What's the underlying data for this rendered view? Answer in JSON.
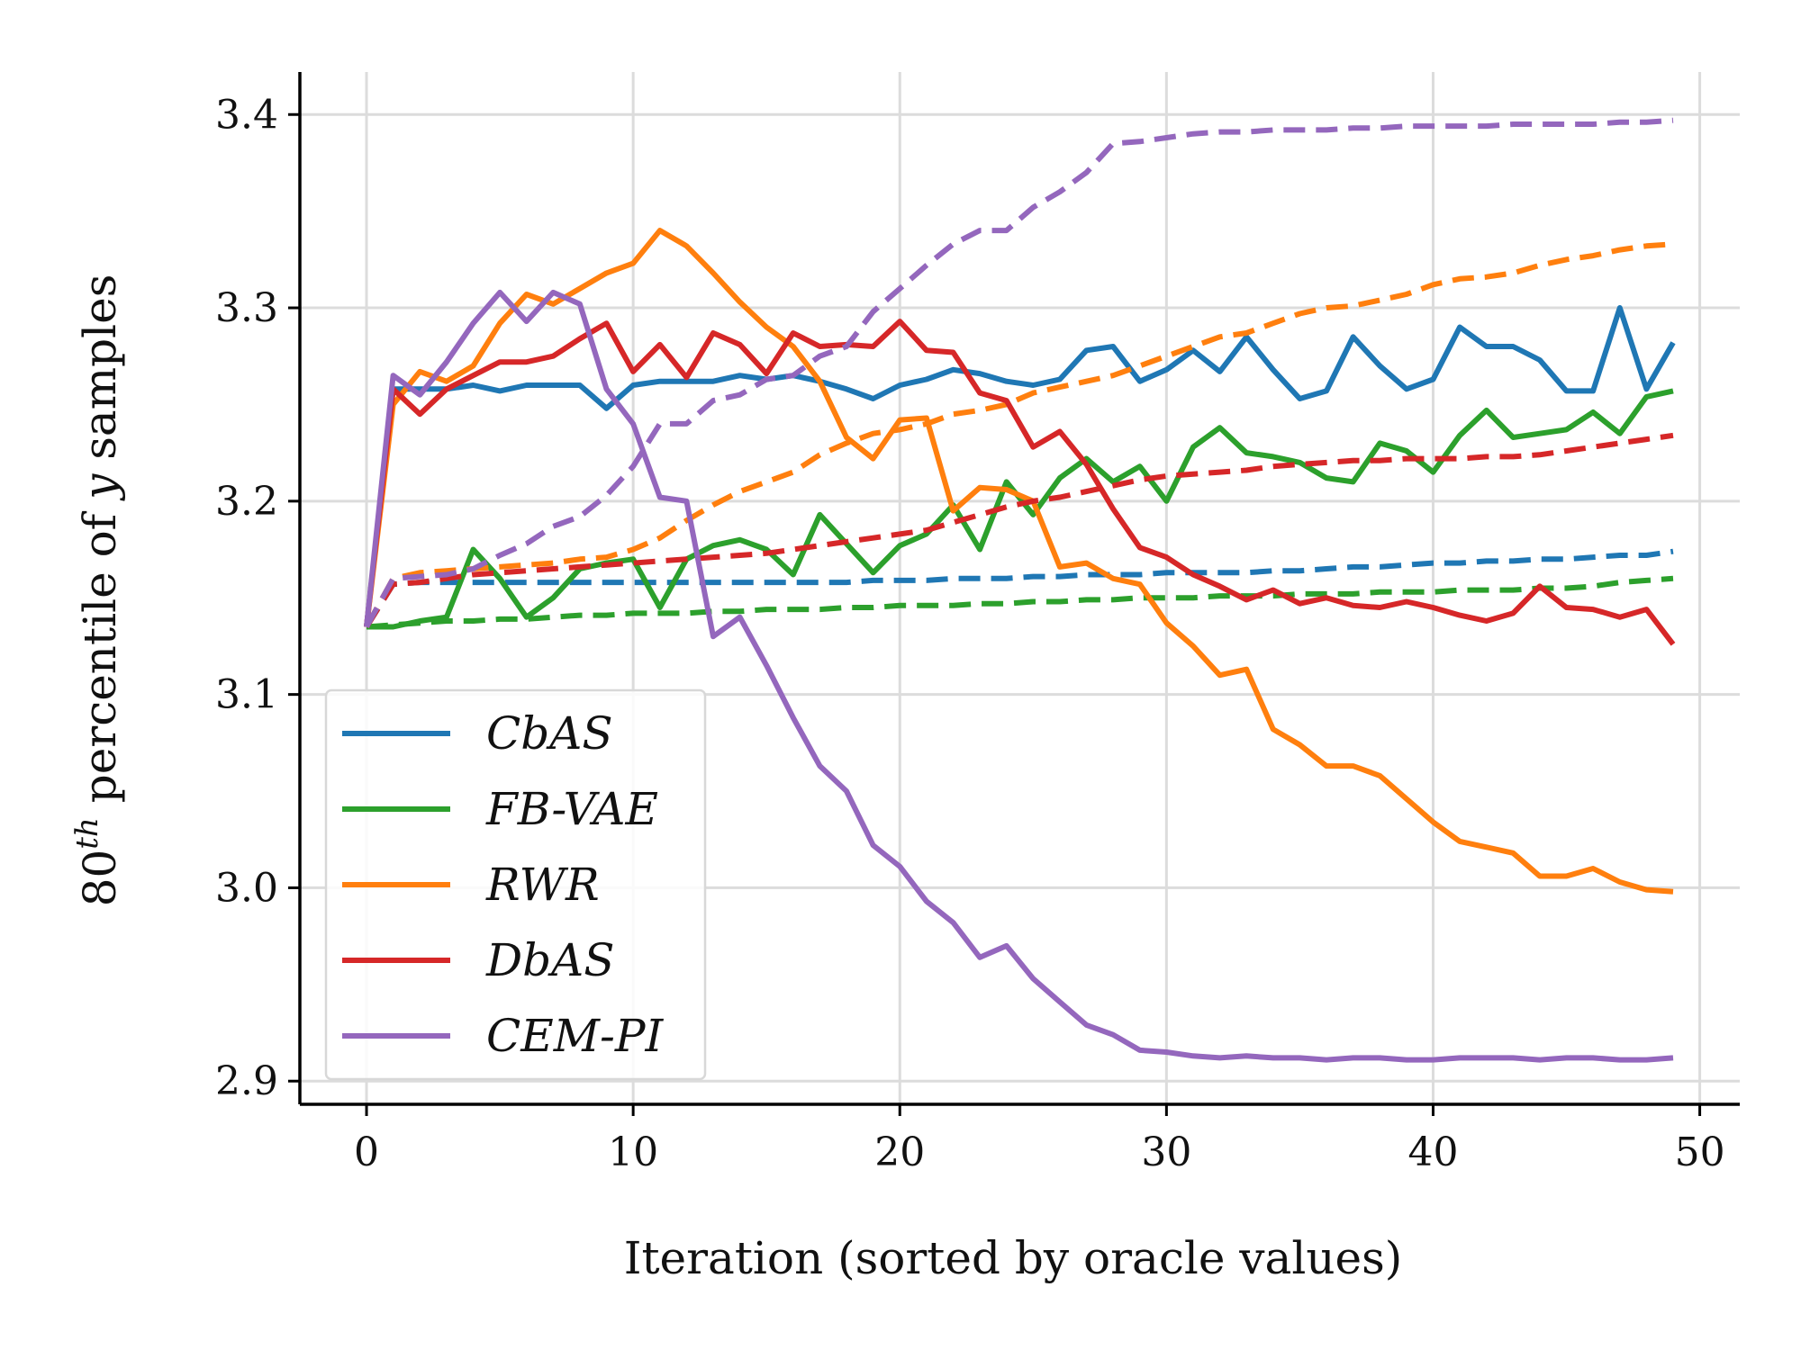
{
  "chart_data": {
    "type": "line",
    "title": "",
    "xlabel": "Iteration (sorted by oracle values)",
    "ylabel_base": "80",
    "ylabel_sup": "th",
    "ylabel_rest": " percentile of ",
    "ylabel_var": "y",
    "ylabel_end": " samples",
    "xlim": [
      -2.5,
      51.5
    ],
    "ylim": [
      2.888,
      3.422
    ],
    "xticks": [
      0,
      10,
      20,
      30,
      40,
      50
    ],
    "yticks": [
      2.9,
      3.0,
      3.1,
      3.2,
      3.3,
      3.4
    ],
    "xtick_labels": [
      "0",
      "10",
      "20",
      "30",
      "40",
      "50"
    ],
    "ytick_labels": [
      "2.9",
      "3.0",
      "3.1",
      "3.2",
      "3.3",
      "3.4"
    ],
    "grid": true,
    "legend_position": "lower-left",
    "line_styles": {
      "solid": "per-iteration 80th percentile",
      "dashed": "running best"
    },
    "series": [
      {
        "name": "CbAS",
        "color": "#1f77b4",
        "solid": [
          3.135,
          3.258,
          3.258,
          3.258,
          3.26,
          3.257,
          3.26,
          3.26,
          3.26,
          3.248,
          3.26,
          3.262,
          3.262,
          3.262,
          3.265,
          3.263,
          3.265,
          3.262,
          3.258,
          3.253,
          3.26,
          3.263,
          3.268,
          3.266,
          3.262,
          3.26,
          3.263,
          3.278,
          3.28,
          3.262,
          3.268,
          3.278,
          3.267,
          3.285,
          3.268,
          3.253,
          3.257,
          3.285,
          3.27,
          3.258,
          3.263,
          3.29,
          3.28,
          3.28,
          3.273,
          3.257,
          3.257,
          3.3,
          3.258,
          3.282
        ],
        "dashed": [
          3.135,
          3.157,
          3.158,
          3.158,
          3.158,
          3.158,
          3.158,
          3.158,
          3.158,
          3.158,
          3.158,
          3.158,
          3.158,
          3.158,
          3.158,
          3.158,
          3.158,
          3.158,
          3.158,
          3.159,
          3.159,
          3.159,
          3.16,
          3.16,
          3.16,
          3.161,
          3.161,
          3.162,
          3.162,
          3.162,
          3.163,
          3.163,
          3.163,
          3.163,
          3.164,
          3.164,
          3.165,
          3.166,
          3.166,
          3.167,
          3.168,
          3.168,
          3.169,
          3.169,
          3.17,
          3.17,
          3.171,
          3.172,
          3.172,
          3.174
        ]
      },
      {
        "name": "FB-VAE",
        "color": "#2ca02c",
        "solid": [
          3.135,
          3.135,
          3.138,
          3.14,
          3.175,
          3.16,
          3.14,
          3.15,
          3.165,
          3.168,
          3.17,
          3.145,
          3.17,
          3.177,
          3.18,
          3.175,
          3.162,
          3.193,
          3.178,
          3.163,
          3.177,
          3.183,
          3.198,
          3.175,
          3.21,
          3.193,
          3.212,
          3.222,
          3.21,
          3.218,
          3.2,
          3.228,
          3.238,
          3.225,
          3.223,
          3.22,
          3.212,
          3.21,
          3.23,
          3.226,
          3.215,
          3.234,
          3.247,
          3.233,
          3.235,
          3.237,
          3.246,
          3.235,
          3.254,
          3.257
        ],
        "dashed": [
          3.135,
          3.136,
          3.137,
          3.138,
          3.138,
          3.139,
          3.139,
          3.14,
          3.141,
          3.141,
          3.142,
          3.142,
          3.142,
          3.143,
          3.143,
          3.144,
          3.144,
          3.144,
          3.145,
          3.145,
          3.146,
          3.146,
          3.146,
          3.147,
          3.147,
          3.148,
          3.148,
          3.149,
          3.149,
          3.15,
          3.15,
          3.15,
          3.151,
          3.151,
          3.151,
          3.152,
          3.152,
          3.152,
          3.153,
          3.153,
          3.153,
          3.154,
          3.154,
          3.154,
          3.155,
          3.155,
          3.156,
          3.158,
          3.159,
          3.16
        ]
      },
      {
        "name": "RWR",
        "color": "#ff7f0e",
        "solid": [
          3.135,
          3.25,
          3.267,
          3.262,
          3.27,
          3.292,
          3.307,
          3.302,
          3.31,
          3.318,
          3.323,
          3.34,
          3.332,
          3.318,
          3.303,
          3.29,
          3.28,
          3.262,
          3.233,
          3.222,
          3.242,
          3.243,
          3.195,
          3.207,
          3.206,
          3.2,
          3.166,
          3.168,
          3.16,
          3.157,
          3.137,
          3.125,
          3.11,
          3.113,
          3.082,
          3.074,
          3.063,
          3.063,
          3.058,
          3.046,
          3.034,
          3.024,
          3.021,
          3.018,
          3.006,
          3.006,
          3.01,
          3.003,
          2.999,
          2.998
        ],
        "dashed": [
          3.135,
          3.16,
          3.163,
          3.164,
          3.165,
          3.166,
          3.167,
          3.168,
          3.17,
          3.171,
          3.175,
          3.181,
          3.19,
          3.198,
          3.205,
          3.21,
          3.215,
          3.224,
          3.23,
          3.235,
          3.237,
          3.24,
          3.245,
          3.247,
          3.25,
          3.256,
          3.259,
          3.262,
          3.265,
          3.27,
          3.275,
          3.28,
          3.285,
          3.287,
          3.292,
          3.297,
          3.3,
          3.301,
          3.304,
          3.307,
          3.312,
          3.315,
          3.316,
          3.318,
          3.322,
          3.325,
          3.327,
          3.33,
          3.332,
          3.333
        ]
      },
      {
        "name": "DbAS",
        "color": "#d62728",
        "solid": [
          3.135,
          3.258,
          3.245,
          3.258,
          3.265,
          3.272,
          3.272,
          3.275,
          3.284,
          3.292,
          3.267,
          3.281,
          3.264,
          3.287,
          3.281,
          3.266,
          3.287,
          3.28,
          3.281,
          3.28,
          3.293,
          3.278,
          3.277,
          3.256,
          3.252,
          3.228,
          3.236,
          3.219,
          3.196,
          3.176,
          3.171,
          3.162,
          3.156,
          3.149,
          3.154,
          3.147,
          3.15,
          3.146,
          3.145,
          3.148,
          3.145,
          3.141,
          3.138,
          3.142,
          3.156,
          3.145,
          3.144,
          3.14,
          3.144,
          3.126
        ],
        "dashed": [
          3.135,
          3.157,
          3.158,
          3.16,
          3.162,
          3.163,
          3.164,
          3.165,
          3.166,
          3.167,
          3.168,
          3.169,
          3.17,
          3.171,
          3.172,
          3.173,
          3.175,
          3.177,
          3.179,
          3.181,
          3.183,
          3.185,
          3.189,
          3.193,
          3.197,
          3.2,
          3.202,
          3.205,
          3.208,
          3.211,
          3.213,
          3.214,
          3.215,
          3.216,
          3.218,
          3.219,
          3.22,
          3.221,
          3.221,
          3.222,
          3.222,
          3.222,
          3.223,
          3.223,
          3.224,
          3.226,
          3.228,
          3.23,
          3.232,
          3.234
        ]
      },
      {
        "name": "CEM-PI",
        "color": "#9467bd",
        "solid": [
          3.135,
          3.265,
          3.255,
          3.272,
          3.292,
          3.308,
          3.293,
          3.308,
          3.302,
          3.258,
          3.24,
          3.202,
          3.2,
          3.13,
          3.14,
          3.115,
          3.088,
          3.063,
          3.05,
          3.022,
          3.011,
          2.993,
          2.982,
          2.964,
          2.97,
          2.953,
          2.941,
          2.929,
          2.924,
          2.916,
          2.915,
          2.913,
          2.912,
          2.913,
          2.912,
          2.912,
          2.911,
          2.912,
          2.912,
          2.911,
          2.911,
          2.912,
          2.912,
          2.912,
          2.911,
          2.912,
          2.912,
          2.911,
          2.911,
          2.912
        ],
        "dashed": [
          3.135,
          3.16,
          3.161,
          3.162,
          3.165,
          3.172,
          3.178,
          3.187,
          3.192,
          3.203,
          3.218,
          3.24,
          3.24,
          3.252,
          3.255,
          3.263,
          3.265,
          3.275,
          3.28,
          3.298,
          3.31,
          3.322,
          3.333,
          3.34,
          3.34,
          3.352,
          3.36,
          3.37,
          3.385,
          3.386,
          3.388,
          3.39,
          3.391,
          3.391,
          3.392,
          3.392,
          3.392,
          3.393,
          3.393,
          3.394,
          3.394,
          3.394,
          3.394,
          3.395,
          3.395,
          3.395,
          3.395,
          3.396,
          3.396,
          3.397
        ]
      }
    ]
  }
}
